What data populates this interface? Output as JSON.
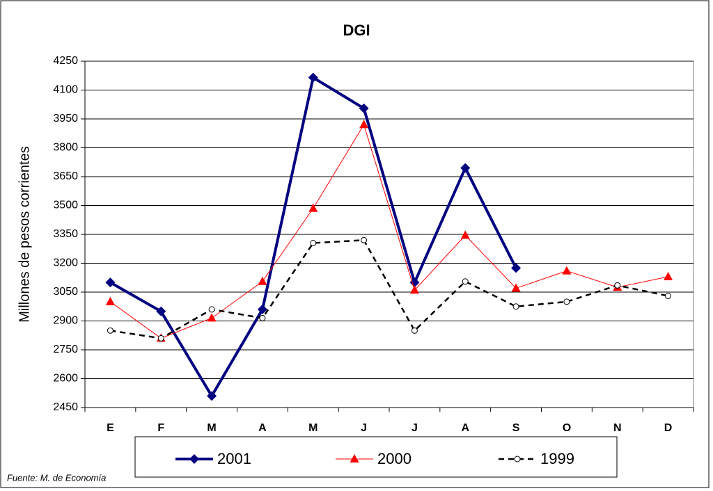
{
  "chart_data": {
    "type": "line",
    "title": "DGI",
    "y_label": "Millones de pesos corrientes",
    "source": "Fuente: M. de Economía",
    "categories": [
      "E",
      "F",
      "M",
      "A",
      "M",
      "J",
      "J",
      "A",
      "S",
      "O",
      "N",
      "D"
    ],
    "series": [
      {
        "name": "2001",
        "color": "#000080",
        "marker": "diamond",
        "dash": false,
        "values": [
          3100,
          2950,
          2510,
          2960,
          4165,
          4005,
          3100,
          3695,
          3175,
          null,
          null,
          null
        ]
      },
      {
        "name": "2000",
        "color": "#ff0000",
        "marker": "triangle",
        "dash": false,
        "values": [
          3000,
          2810,
          2915,
          3105,
          3485,
          3920,
          3060,
          3345,
          3070,
          3160,
          3075,
          3130
        ]
      },
      {
        "name": "1999",
        "color": "#000000",
        "marker": "circle",
        "dash": true,
        "values": [
          2850,
          2810,
          2960,
          2915,
          3305,
          3320,
          2850,
          3105,
          2975,
          3000,
          3085,
          3030
        ]
      }
    ],
    "ylim": [
      2450,
      4250
    ],
    "yticks": [
      2450,
      2600,
      2750,
      2900,
      3050,
      3200,
      3350,
      3500,
      3650,
      3800,
      3950,
      4100,
      4250
    ],
    "grid": true,
    "legend": "bottom"
  }
}
